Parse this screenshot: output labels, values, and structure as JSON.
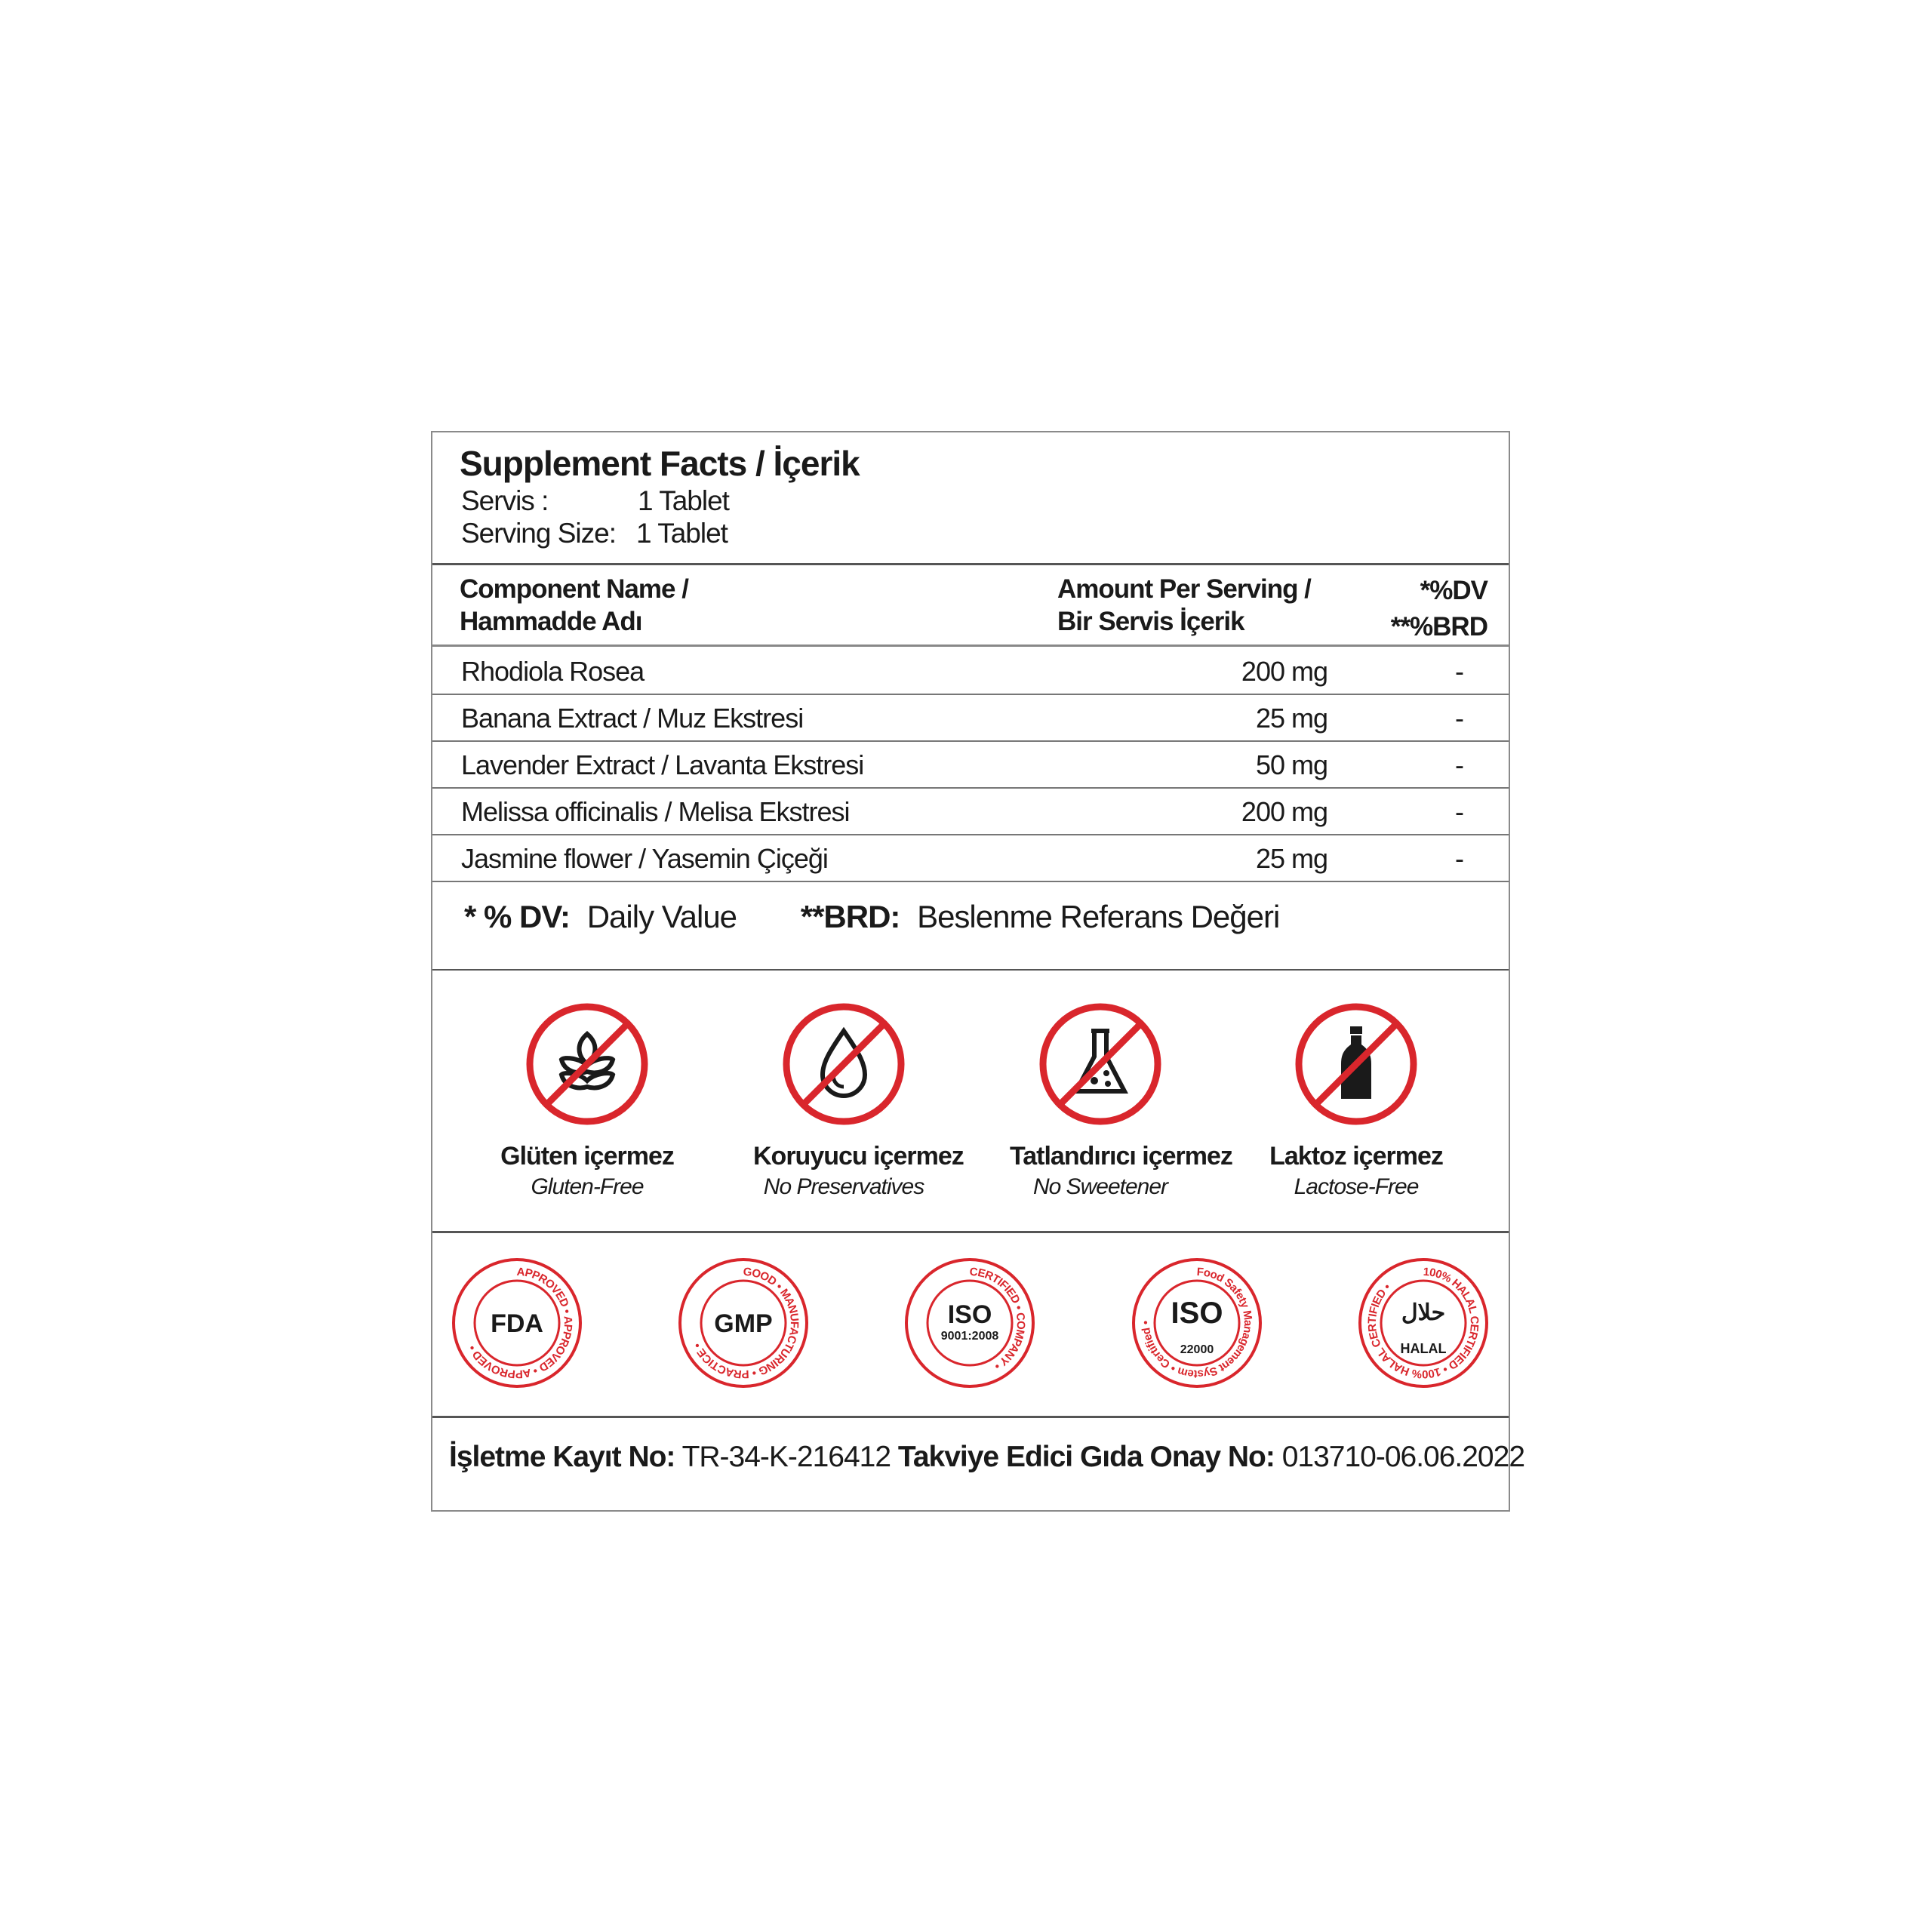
{
  "header": {
    "title": "Supplement Facts / İçerik",
    "servis_label": "Servis :",
    "servis_value": "1 Tablet",
    "serving_size_label": "Serving Size:",
    "serving_size_value": "1 Tablet"
  },
  "columns": {
    "name_line1": "Component Name /",
    "name_line2": "Hammadde Adı",
    "amount_line1": "Amount Per Serving /",
    "amount_line2": "Bir Servis İçerik",
    "dv_line1": "*%DV",
    "dv_line2": "**%BRD"
  },
  "rows": [
    {
      "name": "Rhodiola Rosea",
      "amount": "200 mg",
      "dv": "-"
    },
    {
      "name": "Banana Extract / Muz Ekstresi",
      "amount": "25 mg",
      "dv": "-"
    },
    {
      "name": "Lavender Extract / Lavanta Ekstresi",
      "amount": "50 mg",
      "dv": "-"
    },
    {
      "name": "Melissa officinalis / Melisa Ekstresi",
      "amount": "200 mg",
      "dv": "-"
    },
    {
      "name": "Jasmine flower / Yasemin Çiçeği",
      "amount": "25 mg",
      "dv": "-"
    }
  ],
  "footnote": {
    "dv_key": "* % DV:",
    "dv_text": "Daily Value",
    "brd_key": "**BRD:",
    "brd_text": "Beslenme Referans Değeri"
  },
  "free_icons": [
    {
      "icon": "wheat-icon",
      "label": "Glüten içermez",
      "sub": "Gluten-Free"
    },
    {
      "icon": "drop-icon",
      "label": "Koruyucu içermez",
      "sub": "No Preservatives"
    },
    {
      "icon": "flask-icon",
      "label": "Tatlandırıcı içermez",
      "sub": "No Sweetener"
    },
    {
      "icon": "bottle-icon",
      "label": "Laktoz içermez",
      "sub": "Lactose-Free"
    }
  ],
  "badges": [
    {
      "name": "fda-approved",
      "center": "FDA",
      "ring": "APPROVED • APPROVED • APPROVED •"
    },
    {
      "name": "gmp",
      "center": "GMP",
      "ring": "GOOD • MANUFACTURING • PRACTICE •"
    },
    {
      "name": "iso-9001",
      "center": "ISO",
      "sub": "9001:2008",
      "ring": "CERTIFIED • COMPANY •"
    },
    {
      "name": "iso-22000",
      "center": "ISO",
      "sub": "22000",
      "ring": "Food Safety Management System • Certified •"
    },
    {
      "name": "halal",
      "center": "حلال",
      "sub": "HALAL",
      "ring": "100% HALAL CERTIFIED • 100% HALAL CERTIFIED •"
    }
  ],
  "footer": {
    "reg_label": "İşletme Kayıt No:",
    "reg_value": "TR-34-K-216412",
    "approval_label": "Takviye Edici Gıda Onay No:",
    "approval_value": "013710-06.06.2022"
  },
  "colors": {
    "red": "#d9262c",
    "border": "#8a8a8a",
    "text": "#1a1a1a"
  }
}
